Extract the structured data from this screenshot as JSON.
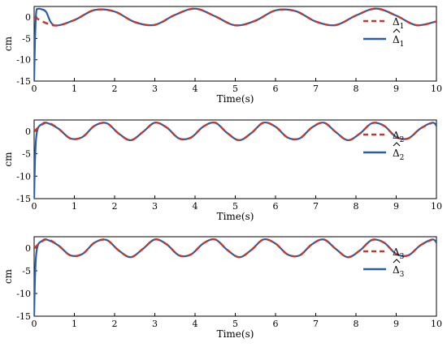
{
  "chart_data": [
    {
      "type": "line",
      "xlabel": "Time(s)",
      "ylabel": "cm",
      "xlim": [
        0,
        10
      ],
      "ylim": [
        -15,
        2.5
      ],
      "xticks": [
        "0",
        "1",
        "2",
        "3",
        "4",
        "5",
        "6",
        "7",
        "8",
        "9",
        "10"
      ],
      "yticks": [
        "0",
        "-5",
        "-10",
        "-15"
      ],
      "legend_position": "top-right",
      "series": [
        {
          "name": "Δ1",
          "legend_base": "Δ",
          "legend_sub": "1",
          "hat": false,
          "color": "#c0392b",
          "dash": true,
          "x": [
            0,
            0.5,
            1.0,
            1.5,
            2.0,
            2.5,
            3.0,
            3.5,
            4.0,
            4.5,
            5.0,
            5.5,
            6.0,
            6.5,
            7.0,
            7.5,
            8.0,
            8.5,
            9.0,
            9.5,
            10.0
          ],
          "y": [
            0,
            -1.96,
            -0.68,
            1.67,
            1.31,
            -1.15,
            -1.81,
            0.52,
            1.99,
            0.19,
            -1.92,
            -0.84,
            1.58,
            1.41,
            -1.03,
            -1.86,
            0.39,
            2.0,
            0.36,
            -1.88,
            -1.0
          ]
        },
        {
          "name": "Δ̂1",
          "legend_base": "Δ",
          "legend_sub": "1",
          "hat": true,
          "color": "#2a5caa",
          "dash": false,
          "x": [
            0,
            0.02,
            0.05,
            0.1,
            0.2,
            0.3,
            0.5,
            1.0,
            1.5,
            2.0,
            2.5,
            3.0,
            3.5,
            4.0,
            4.5,
            5.0,
            5.5,
            6.0,
            6.5,
            7.0,
            7.5,
            8.0,
            8.5,
            9.0,
            9.5,
            10.0
          ],
          "y": [
            -15,
            -6,
            1.0,
            1.95,
            1.8,
            1.2,
            -1.9,
            -0.68,
            1.67,
            1.31,
            -1.15,
            -1.81,
            0.52,
            1.99,
            0.19,
            -1.92,
            -0.84,
            1.58,
            1.41,
            -1.03,
            -1.86,
            0.39,
            2.0,
            0.36,
            -1.88,
            -1.0
          ]
        }
      ]
    },
    {
      "type": "line",
      "xlabel": "Time(s)",
      "ylabel": "cm",
      "xlim": [
        0,
        10
      ],
      "ylim": [
        -15,
        2.5
      ],
      "xticks": [
        "0",
        "1",
        "2",
        "3",
        "4",
        "5",
        "6",
        "7",
        "8",
        "9",
        "10"
      ],
      "yticks": [
        "0",
        "-5",
        "-10",
        "-15"
      ],
      "legend_position": "top-right",
      "series": [
        {
          "name": "Δ2",
          "legend_base": "Δ",
          "legend_sub": "2",
          "hat": false,
          "color": "#c0392b",
          "dash": true,
          "x": [
            0,
            0.3,
            0.6,
            0.9,
            1.2,
            1.5,
            1.8,
            2.1,
            2.4,
            2.7,
            3.0,
            3.3,
            3.6,
            3.9,
            4.2,
            4.5,
            4.8,
            5.1,
            5.4,
            5.7,
            6.0,
            6.3,
            6.6,
            6.9,
            7.2,
            7.5,
            7.8,
            8.1,
            8.4,
            8.7,
            9.0,
            9.3,
            9.6,
            9.9
          ],
          "y": [
            0,
            1.9,
            0.6,
            -1.6,
            -1.3,
            1.2,
            1.8,
            -0.5,
            -2.0,
            -0.2,
            1.9,
            0.8,
            -1.6,
            -1.4,
            1.0,
            1.9,
            -0.4,
            -2.0,
            -0.4,
            1.9,
            1.0,
            -1.4,
            -1.6,
            0.8,
            1.9,
            -0.2,
            -2.0,
            -0.5,
            1.8,
            1.2,
            -1.3,
            -1.6,
            0.6,
            1.9
          ]
        },
        {
          "name": "Δ̂2",
          "legend_base": "Δ",
          "legend_sub": "2",
          "hat": true,
          "color": "#2a5caa",
          "dash": false,
          "x": [
            0,
            0.02,
            0.05,
            0.1,
            0.2,
            0.3,
            0.6,
            0.9,
            1.2,
            1.5,
            1.8,
            2.1,
            2.4,
            2.7,
            3.0,
            3.3,
            3.6,
            3.9,
            4.2,
            4.5,
            4.8,
            5.1,
            5.4,
            5.7,
            6.0,
            6.3,
            6.6,
            6.9,
            7.2,
            7.5,
            7.8,
            8.1,
            8.4,
            8.7,
            9.0,
            9.3,
            9.6,
            9.9,
            10.0
          ],
          "y": [
            -15,
            -7,
            -1.5,
            0.8,
            1.6,
            1.9,
            0.6,
            -1.6,
            -1.3,
            1.2,
            1.8,
            -0.5,
            -2.0,
            -0.2,
            1.9,
            0.8,
            -1.6,
            -1.4,
            1.0,
            1.9,
            -0.4,
            -2.0,
            -0.4,
            1.9,
            1.0,
            -1.4,
            -1.6,
            0.8,
            1.9,
            -0.2,
            -2.0,
            -0.5,
            1.8,
            1.2,
            -1.3,
            -1.6,
            0.6,
            1.9,
            1.2
          ]
        }
      ]
    },
    {
      "type": "line",
      "xlabel": "Time(s)",
      "ylabel": "cm",
      "xlim": [
        0,
        10
      ],
      "ylim": [
        -15,
        2.5
      ],
      "xticks": [
        "0",
        "1",
        "2",
        "3",
        "4",
        "5",
        "6",
        "7",
        "8",
        "9",
        "10"
      ],
      "yticks": [
        "0",
        "-5",
        "-10",
        "-15"
      ],
      "legend_position": "top-right",
      "series": [
        {
          "name": "Δ3",
          "legend_base": "Δ",
          "legend_sub": "3",
          "hat": false,
          "color": "#c0392b",
          "dash": true,
          "x": [
            0,
            0.3,
            0.6,
            0.9,
            1.2,
            1.5,
            1.8,
            2.1,
            2.4,
            2.7,
            3.0,
            3.3,
            3.6,
            3.9,
            4.2,
            4.5,
            4.8,
            5.1,
            5.4,
            5.7,
            6.0,
            6.3,
            6.6,
            6.9,
            7.2,
            7.5,
            7.8,
            8.1,
            8.4,
            8.7,
            9.0,
            9.3,
            9.6,
            9.9
          ],
          "y": [
            0,
            1.9,
            0.6,
            -1.6,
            -1.3,
            1.2,
            1.8,
            -0.5,
            -2.0,
            -0.2,
            1.9,
            0.8,
            -1.6,
            -1.4,
            1.0,
            1.9,
            -0.4,
            -2.0,
            -0.4,
            1.9,
            1.0,
            -1.4,
            -1.6,
            0.8,
            1.9,
            -0.2,
            -2.0,
            -0.5,
            1.8,
            1.2,
            -1.3,
            -1.6,
            0.6,
            1.9
          ]
        },
        {
          "name": "Δ̂3",
          "legend_base": "Δ",
          "legend_sub": "3",
          "hat": true,
          "color": "#2a5caa",
          "dash": false,
          "x": [
            0,
            0.02,
            0.05,
            0.1,
            0.2,
            0.3,
            0.6,
            0.9,
            1.2,
            1.5,
            1.8,
            2.1,
            2.4,
            2.7,
            3.0,
            3.3,
            3.6,
            3.9,
            4.2,
            4.5,
            4.8,
            5.1,
            5.4,
            5.7,
            6.0,
            6.3,
            6.6,
            6.9,
            7.2,
            7.5,
            7.8,
            8.1,
            8.4,
            8.7,
            9.0,
            9.3,
            9.6,
            9.9,
            10.0
          ],
          "y": [
            -15,
            -7,
            -1.5,
            0.8,
            1.6,
            1.9,
            0.6,
            -1.6,
            -1.3,
            1.2,
            1.8,
            -0.5,
            -2.0,
            -0.2,
            1.9,
            0.8,
            -1.6,
            -1.4,
            1.0,
            1.9,
            -0.4,
            -2.0,
            -0.4,
            1.9,
            1.0,
            -1.4,
            -1.6,
            0.8,
            1.9,
            -0.2,
            -2.0,
            -0.5,
            1.8,
            1.2,
            -1.3,
            -1.6,
            0.6,
            1.9,
            1.2
          ]
        }
      ]
    }
  ]
}
